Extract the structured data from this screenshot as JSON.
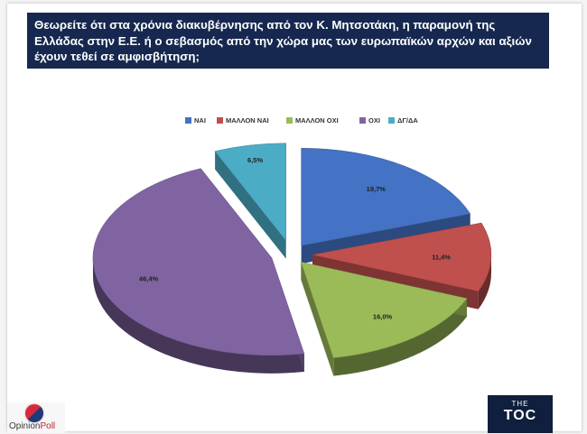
{
  "chart_data": {
    "type": "pie",
    "title": "Θεωρείτε ότι στα χρόνια διακυβέρνησης από τον Κ. Μητσοτάκη, η παραμονή της Ελλάδας στην Ε.Ε. ή ο σεβασμός από την χώρα μας των ευρωπαϊκών αρχών και αξιών έχουν τεθεί σε αμφισβήτηση;",
    "legend_position": "top",
    "slices": [
      {
        "label": "ΝΑΙ",
        "value": 19.7,
        "value_label": "19,7%",
        "color": "#4472c4"
      },
      {
        "label": "ΜΑΛΛΟΝ ΝΑΙ",
        "value": 11.4,
        "value_label": "11,4%",
        "color": "#c0504d"
      },
      {
        "label": "ΜΑΛΛΟΝ ΟΧΙ",
        "value": 16.0,
        "value_label": "16,0%",
        "color": "#9bbb59"
      },
      {
        "label": "ΟΧΙ",
        "value": 46.4,
        "value_label": "46,4%",
        "color": "#8064a2"
      },
      {
        "label": "ΔΓ/ΔΑ",
        "value": 6.5,
        "value_label": "6,5%",
        "color": "#4bacc6"
      }
    ]
  },
  "logos": {
    "left": {
      "part1": "Opinion",
      "part2": "Poll"
    },
    "right": {
      "small": "THE",
      "big": "TOC"
    }
  }
}
